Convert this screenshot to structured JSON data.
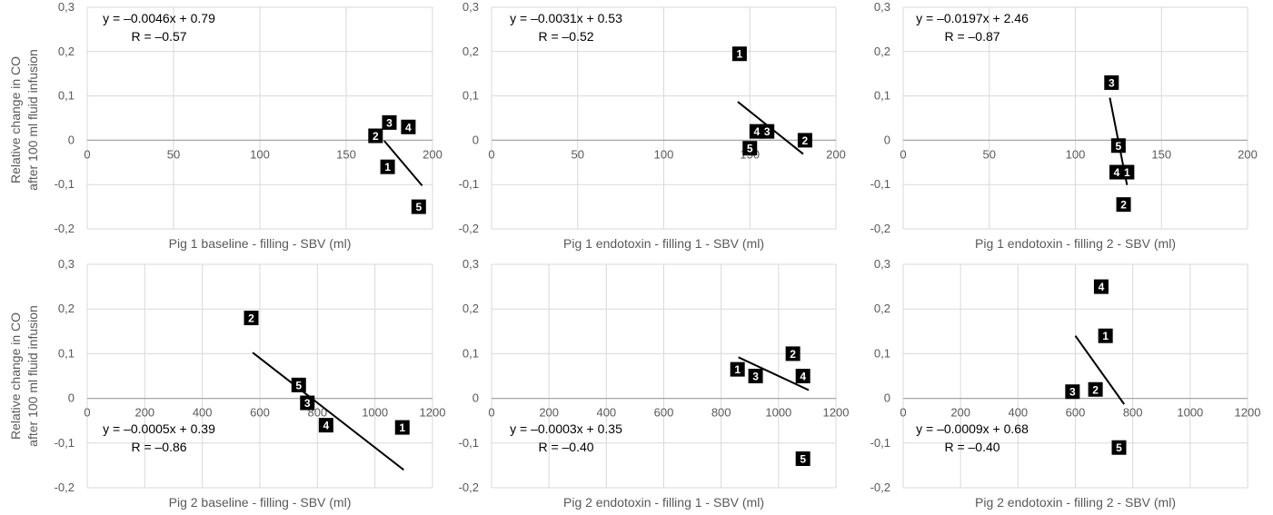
{
  "shared_ylabel_line1": "Relative change in CO",
  "shared_ylabel_line2": "after 100 ml fluid infusion",
  "chart_data": [
    {
      "type": "scatter",
      "xlabel": "Pig 1 baseline - filling - SBV (ml)",
      "xlim": [
        0,
        200
      ],
      "xticks": [
        0,
        50,
        100,
        150,
        200
      ],
      "ylim": [
        -0.2,
        0.3
      ],
      "yticks": [
        -0.2,
        -0.1,
        0,
        0.1,
        0.2,
        0.3
      ],
      "equation": "y = –0.0046x + 0.79",
      "r_text": "R = –0.57",
      "trendline": {
        "x": [
          172,
          194
        ]
      },
      "points": [
        {
          "label": "1",
          "x": 174,
          "y": -0.06
        },
        {
          "label": "2",
          "x": 167,
          "y": 0.01
        },
        {
          "label": "3",
          "x": 175,
          "y": 0.04
        },
        {
          "label": "4",
          "x": 186,
          "y": 0.03
        },
        {
          "label": "5",
          "x": 192,
          "y": -0.15
        }
      ]
    },
    {
      "type": "scatter",
      "xlabel": "Pig 1 endotoxin - filling 1 - SBV (ml)",
      "xlim": [
        0,
        200
      ],
      "xticks": [
        0,
        50,
        100,
        150,
        200
      ],
      "ylim": [
        -0.2,
        0.3
      ],
      "yticks": [
        -0.2,
        -0.1,
        0,
        0.1,
        0.2,
        0.3
      ],
      "equation": "y = –0.0031x + 0.53",
      "r_text": "R = –0.52",
      "trendline": {
        "x": [
          143,
          181
        ]
      },
      "points": [
        {
          "label": "1",
          "x": 144,
          "y": 0.195
        },
        {
          "label": "2",
          "x": 182,
          "y": 0.0
        },
        {
          "label": "3",
          "x": 160,
          "y": 0.02
        },
        {
          "label": "4",
          "x": 154,
          "y": 0.02
        },
        {
          "label": "5",
          "x": 150,
          "y": -0.018
        }
      ]
    },
    {
      "type": "scatter",
      "xlabel": "Pig 1 endotoxin - filling 2 - SBV (ml)",
      "xlim": [
        0,
        200
      ],
      "xticks": [
        0,
        50,
        100,
        150,
        200
      ],
      "ylim": [
        -0.2,
        0.3
      ],
      "yticks": [
        -0.2,
        -0.1,
        0,
        0.1,
        0.2,
        0.3
      ],
      "equation": "y = –0.0197x + 2.46",
      "r_text": "R = –0.87",
      "trendline": {
        "x": [
          120,
          130
        ]
      },
      "points": [
        {
          "label": "1",
          "x": 130,
          "y": -0.072
        },
        {
          "label": "2",
          "x": 128,
          "y": -0.145
        },
        {
          "label": "3",
          "x": 121,
          "y": 0.13
        },
        {
          "label": "4",
          "x": 124,
          "y": -0.072
        },
        {
          "label": "5",
          "x": 125,
          "y": -0.012
        }
      ]
    },
    {
      "type": "scatter",
      "xlabel": "Pig 2 baseline - filling - SBV (ml)",
      "xlim": [
        0,
        1200
      ],
      "xticks": [
        0,
        200,
        400,
        600,
        800,
        1000,
        1200
      ],
      "ylim": [
        -0.2,
        0.3
      ],
      "yticks": [
        -0.2,
        -0.1,
        0,
        0.1,
        0.2,
        0.3
      ],
      "equation": "y = –0.0005x + 0.39",
      "r_text": "R = –0.86",
      "trendline": {
        "x": [
          575,
          1100
        ]
      },
      "points": [
        {
          "label": "1",
          "x": 1095,
          "y": -0.065
        },
        {
          "label": "2",
          "x": 570,
          "y": 0.18
        },
        {
          "label": "3",
          "x": 765,
          "y": -0.01
        },
        {
          "label": "4",
          "x": 830,
          "y": -0.06
        },
        {
          "label": "5",
          "x": 735,
          "y": 0.03
        }
      ]
    },
    {
      "type": "scatter",
      "xlabel": "Pig 2 endotoxin - filling 1 - SBV (ml)",
      "xlim": [
        0,
        1200
      ],
      "xticks": [
        0,
        200,
        400,
        600,
        800,
        1000,
        1200
      ],
      "ylim": [
        -0.2,
        0.3
      ],
      "yticks": [
        -0.2,
        -0.1,
        0,
        0.1,
        0.2,
        0.3
      ],
      "equation": "y = –0.0003x + 0.35",
      "r_text": "R = –0.40",
      "trendline": {
        "x": [
          860,
          1105
        ]
      },
      "points": [
        {
          "label": "1",
          "x": 857,
          "y": 0.065
        },
        {
          "label": "2",
          "x": 1050,
          "y": 0.1
        },
        {
          "label": "3",
          "x": 920,
          "y": 0.05
        },
        {
          "label": "4",
          "x": 1085,
          "y": 0.05
        },
        {
          "label": "5",
          "x": 1085,
          "y": -0.135
        }
      ]
    },
    {
      "type": "scatter",
      "xlabel": "Pig 2 endotoxin - filling 2 - SBV (ml)",
      "xlim": [
        0,
        1200
      ],
      "xticks": [
        0,
        200,
        400,
        600,
        800,
        1000,
        1200
      ],
      "ylim": [
        -0.2,
        0.3
      ],
      "yticks": [
        -0.2,
        -0.1,
        0,
        0.1,
        0.2,
        0.3
      ],
      "equation": "y = –0.0009x + 0.68",
      "r_text": "R = –0.40",
      "trendline": {
        "x": [
          600,
          770
        ]
      },
      "points": [
        {
          "label": "1",
          "x": 705,
          "y": 0.14
        },
        {
          "label": "2",
          "x": 670,
          "y": 0.02
        },
        {
          "label": "3",
          "x": 590,
          "y": 0.015
        },
        {
          "label": "4",
          "x": 690,
          "y": 0.25
        },
        {
          "label": "5",
          "x": 752,
          "y": -0.11
        }
      ]
    }
  ]
}
